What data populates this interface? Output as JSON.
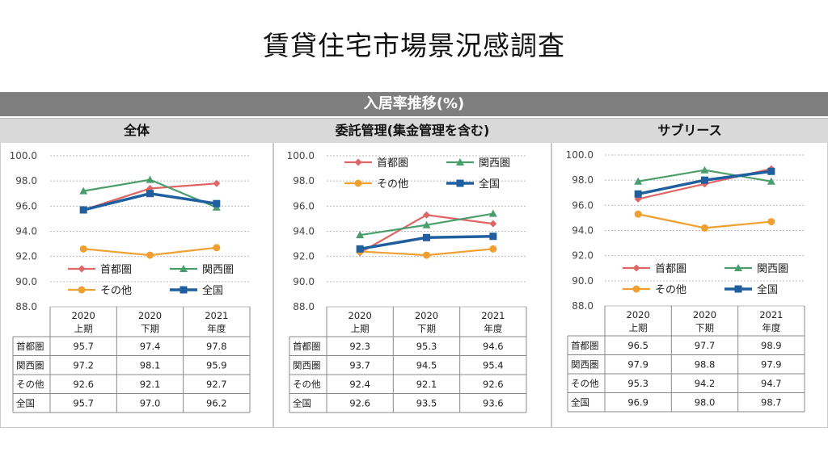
{
  "page_title": "賃貸住宅市場景況感調査",
  "banner": "入居率推移(%)",
  "chart_data": [
    {
      "type": "line",
      "title": "全体",
      "categories": [
        [
          "2020",
          "上期"
        ],
        [
          "2020",
          "下期"
        ],
        [
          "2021",
          "年度"
        ]
      ],
      "ylim": [
        88.0,
        100.0
      ],
      "yticks": [
        "100.0",
        "98.0",
        "96.0",
        "94.0",
        "92.0",
        "90.0",
        "88.0"
      ],
      "grid": true,
      "legend_placement": "bottom-inside",
      "series": [
        {
          "name": "首都圏",
          "color": "#e06666",
          "marker": "diamond",
          "values": [
            95.7,
            97.4,
            97.8
          ],
          "labels": [
            "95.7",
            "97.4",
            "97.8"
          ]
        },
        {
          "name": "関西圏",
          "color": "#4a9e6e",
          "marker": "triangle",
          "values": [
            97.2,
            98.1,
            95.9
          ],
          "labels": [
            "97.2",
            "98.1",
            "95.9"
          ]
        },
        {
          "name": "その他",
          "color": "#f0a030",
          "marker": "circle",
          "values": [
            92.6,
            92.1,
            92.7
          ],
          "labels": [
            "92.6",
            "92.1",
            "92.7"
          ]
        },
        {
          "name": "全国",
          "color": "#1f5fa0",
          "marker": "square",
          "values": [
            95.7,
            97.0,
            96.2
          ],
          "labels": [
            "95.7",
            "97.0",
            "96.2"
          ]
        }
      ]
    },
    {
      "type": "line",
      "title": "委託管理(集金管理を含む)",
      "categories": [
        [
          "2020",
          "上期"
        ],
        [
          "2020",
          "下期"
        ],
        [
          "2021",
          "年度"
        ]
      ],
      "ylim": [
        88.0,
        100.0
      ],
      "yticks": [
        "100.0",
        "98.0",
        "96.0",
        "94.0",
        "92.0",
        "90.0",
        "88.0"
      ],
      "grid": true,
      "legend_placement": "top-inside",
      "series": [
        {
          "name": "首都圏",
          "color": "#e06666",
          "marker": "diamond",
          "values": [
            92.3,
            95.3,
            94.6
          ],
          "labels": [
            "92.3",
            "95.3",
            "94.6"
          ]
        },
        {
          "name": "関西圏",
          "color": "#4a9e6e",
          "marker": "triangle",
          "values": [
            93.7,
            94.5,
            95.4
          ],
          "labels": [
            "93.7",
            "94.5",
            "95.4"
          ]
        },
        {
          "name": "その他",
          "color": "#f0a030",
          "marker": "circle",
          "values": [
            92.4,
            92.1,
            92.6
          ],
          "labels": [
            "92.4",
            "92.1",
            "92.6"
          ]
        },
        {
          "name": "全国",
          "color": "#1f5fa0",
          "marker": "square",
          "values": [
            92.6,
            93.5,
            93.6
          ],
          "labels": [
            "92.6",
            "93.5",
            "93.6"
          ]
        }
      ]
    },
    {
      "type": "line",
      "title": "サブリース",
      "categories": [
        [
          "2020",
          "上期"
        ],
        [
          "2020",
          "下期"
        ],
        [
          "2021",
          "年度"
        ]
      ],
      "ylim": [
        88.0,
        100.0
      ],
      "yticks": [
        "100.0",
        "98.0",
        "96.0",
        "94.0",
        "92.0",
        "90.0",
        "88.0"
      ],
      "grid": true,
      "legend_placement": "bottom-inside",
      "series": [
        {
          "name": "首都圏",
          "color": "#e06666",
          "marker": "diamond",
          "values": [
            96.5,
            97.7,
            98.9
          ],
          "labels": [
            "96.5",
            "97.7",
            "98.9"
          ]
        },
        {
          "name": "関西圏",
          "color": "#4a9e6e",
          "marker": "triangle",
          "values": [
            97.9,
            98.8,
            97.9
          ],
          "labels": [
            "97.9",
            "98.8",
            "97.9"
          ]
        },
        {
          "name": "その他",
          "color": "#f0a030",
          "marker": "circle",
          "values": [
            95.3,
            94.2,
            94.7
          ],
          "labels": [
            "95.3",
            "94.2",
            "94.7"
          ]
        },
        {
          "name": "全国",
          "color": "#1f5fa0",
          "marker": "square",
          "values": [
            96.9,
            98.0,
            98.7
          ],
          "labels": [
            "96.9",
            "98.0",
            "98.7"
          ]
        }
      ]
    }
  ]
}
